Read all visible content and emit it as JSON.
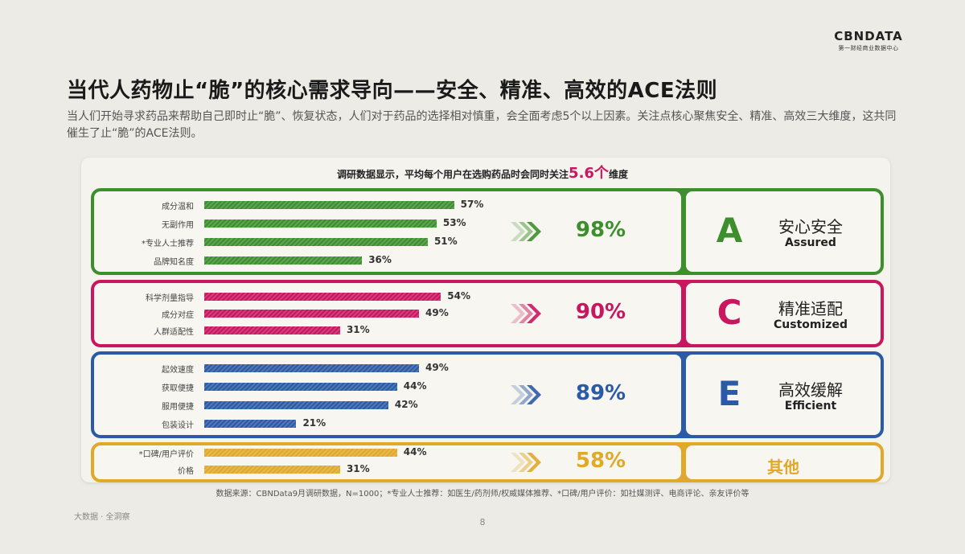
{
  "brand": {
    "logo": "CBNDATA",
    "subtitle": "第一财经商业数据中心"
  },
  "title": "当代人药物止“脆”的核心需求导向——安全、精准、高效的ACE法则",
  "subtitle": "当人们开始寻求药品来帮助自己即时止“脆”、恢复状态，人们对于药品的选择相对慎重，会全面考虑5个以上因素。关注点核心聚焦安全、精准、高效三大维度，这共同催生了止“脆”的ACE法则。",
  "summary": {
    "prefix": "调研数据显示，平均每个用户在选购药品时会同时关注",
    "number": "5.6个",
    "suffix": "维度"
  },
  "chart_data": {
    "type": "bar",
    "orientation": "horizontal",
    "unit": "%",
    "groups": [
      {
        "letter": "A",
        "name_zh": "安心安全",
        "name_en": "Assured",
        "total_label": "98%",
        "color": "#3d8f2e",
        "categories": [
          "成分温和",
          "无副作用",
          "*专业人士推荐",
          "品牌知名度"
        ],
        "values": [
          57,
          53,
          51,
          36
        ],
        "value_labels": [
          "57%",
          "53%",
          "51%",
          "36%"
        ]
      },
      {
        "letter": "C",
        "name_zh": "精准适配",
        "name_en": "Customized",
        "total_label": "90%",
        "color": "#c8165f",
        "categories": [
          "科学剂量指导",
          "成分对症",
          "人群适配性"
        ],
        "values": [
          54,
          49,
          31
        ],
        "value_labels": [
          "54%",
          "49%",
          "31%"
        ]
      },
      {
        "letter": "E",
        "name_zh": "高效缓解",
        "name_en": "Efficient",
        "total_label": "89%",
        "color": "#2b5aa6",
        "categories": [
          "起效速度",
          "获取便捷",
          "服用便捷",
          "包装设计"
        ],
        "values": [
          49,
          44,
          42,
          21
        ],
        "value_labels": [
          "49%",
          "44%",
          "42%",
          "21%"
        ]
      },
      {
        "letter": "",
        "name_zh": "其他",
        "name_en": "",
        "total_label": "58%",
        "color": "#e0a92a",
        "categories": [
          "*口碑/用户评价",
          "价格"
        ],
        "values": [
          44,
          31
        ],
        "value_labels": [
          "44%",
          "31%"
        ]
      }
    ]
  },
  "footnote": "数据来源：CBNData9月调研数据，N=1000；*专业人士推荐：如医生/药剂师/权威媒体推荐、*口碑/用户评价：如社媒测评、电商评论、亲友评价等",
  "footer": {
    "left": "大数据 · 全洞察",
    "page": "8"
  }
}
